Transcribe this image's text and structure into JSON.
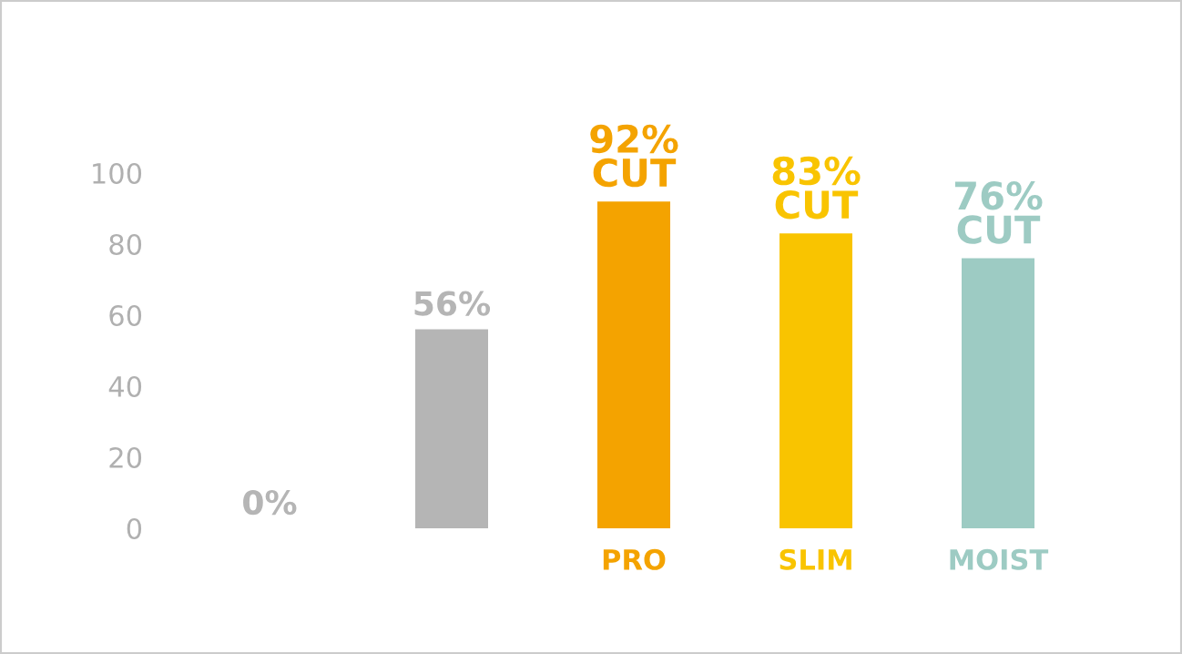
{
  "chart_data": {
    "type": "bar",
    "categories": [
      null,
      null,
      "PRO",
      "SLIM",
      "MOIST"
    ],
    "values": [
      0,
      56,
      92,
      83,
      76
    ],
    "colors": [
      "#b5b5b5",
      "#b5b5b5",
      "#f4a300",
      "#f9c400",
      "#9dcbc3"
    ],
    "value_labels": [
      "0%",
      "56%",
      "92%\nCUT",
      "83%\nCUT",
      "76%\nCUT"
    ],
    "ylim": [
      0,
      100
    ],
    "yticks": [
      0,
      20,
      40,
      60,
      80,
      100
    ],
    "grid": false
  }
}
